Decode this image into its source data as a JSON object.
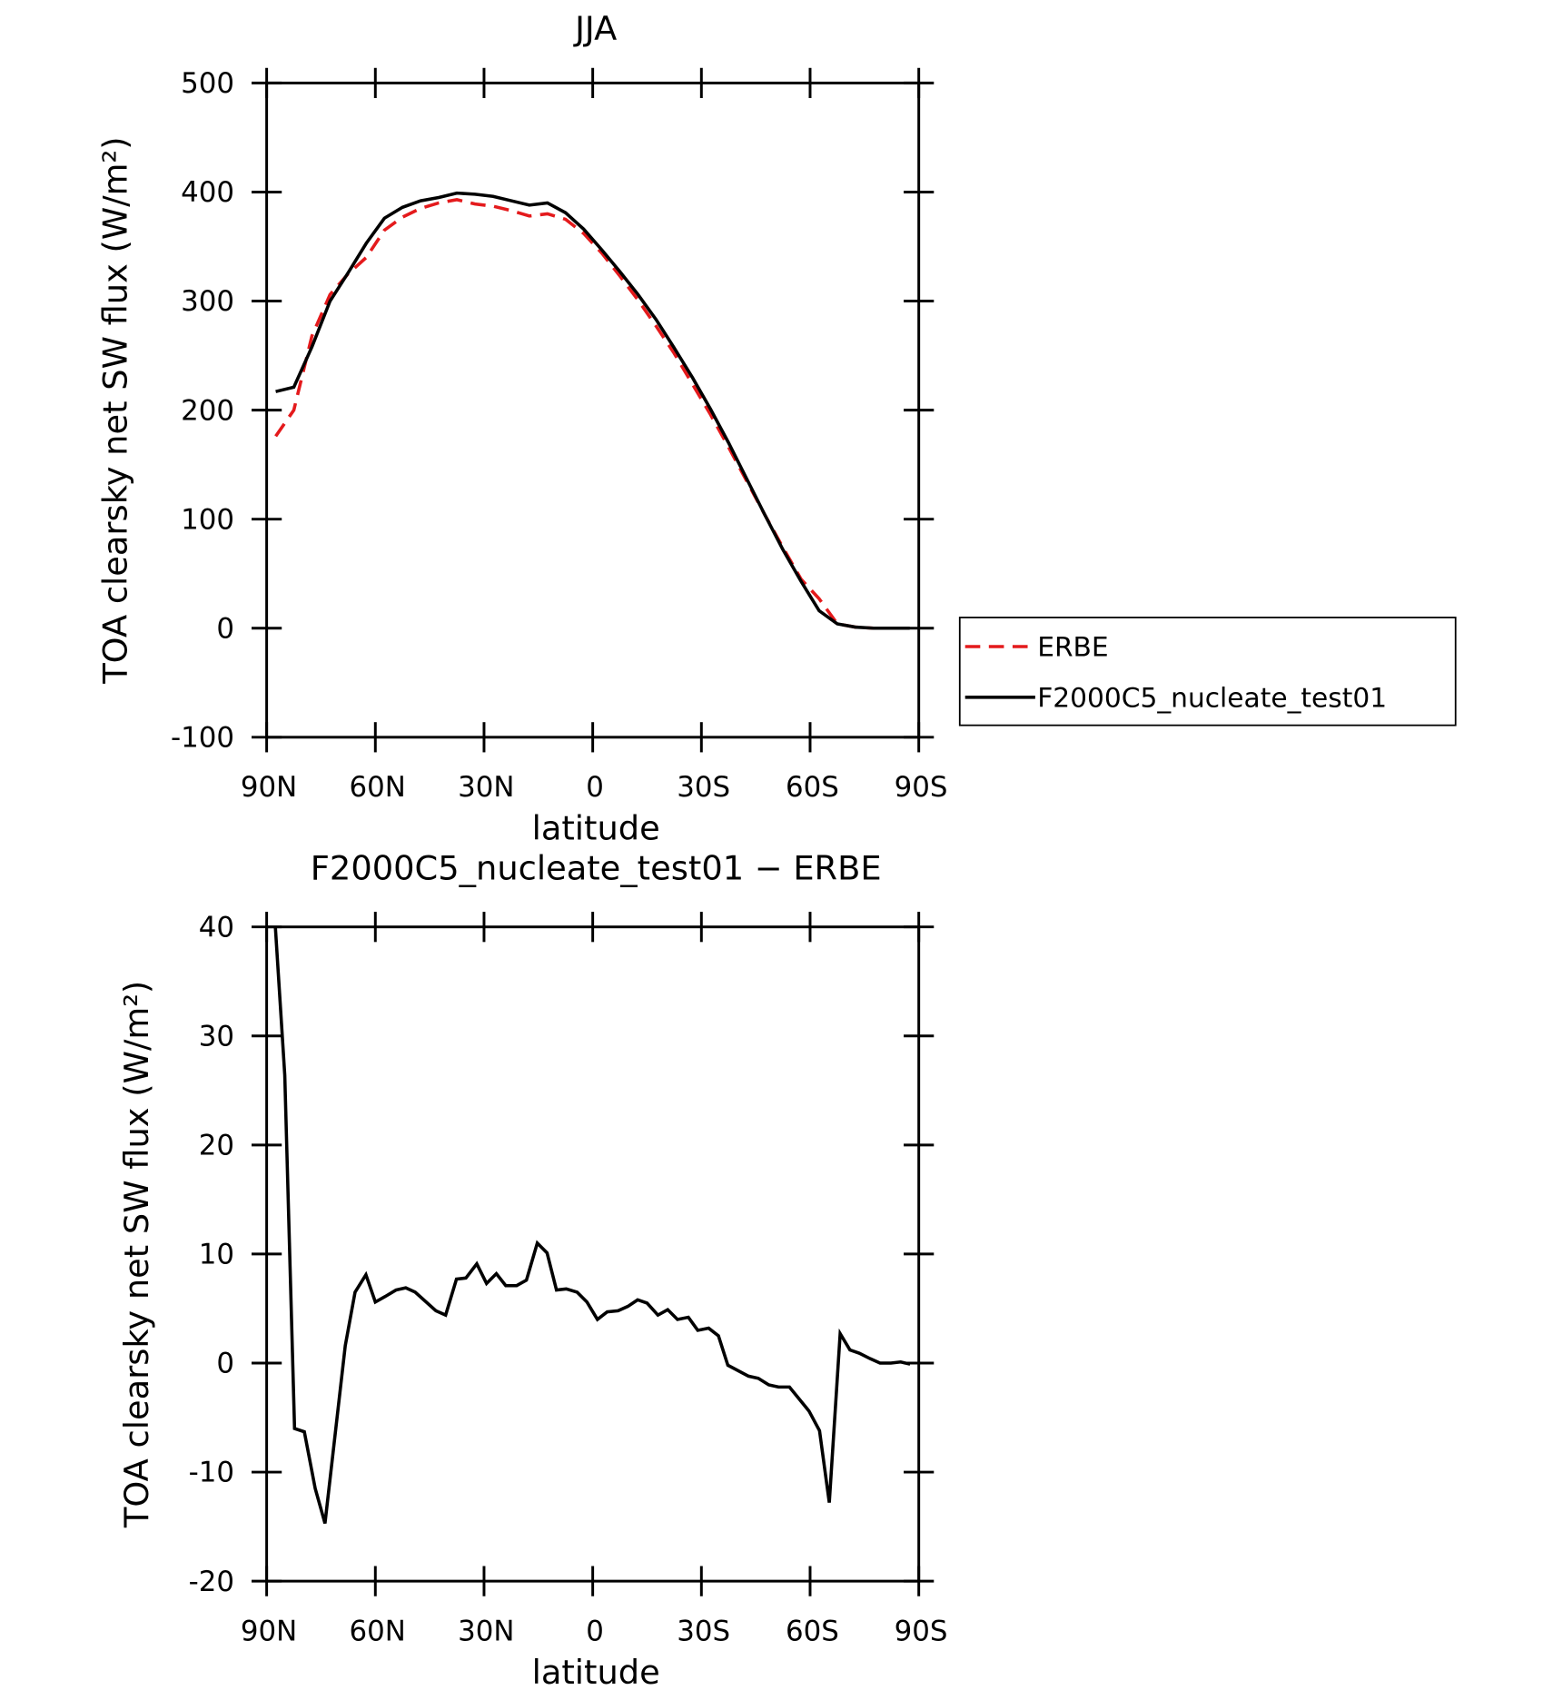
{
  "chart_data": [
    {
      "type": "line",
      "title": "JJA",
      "x_label": "latitude",
      "y_label": "TOA clearsky net SW flux (W/m²)",
      "xlim": [
        90,
        -90
      ],
      "xticks": [
        {
          "value": 90,
          "label": "90N"
        },
        {
          "value": 60,
          "label": "60N"
        },
        {
          "value": 30,
          "label": "30N"
        },
        0,
        {
          "value": -30,
          "label": "30S"
        },
        {
          "value": -60,
          "label": "60S"
        },
        {
          "value": -90,
          "label": "90S"
        }
      ],
      "ylim": [
        -100,
        500
      ],
      "yticks": [
        -100,
        0,
        100,
        200,
        300,
        400,
        500
      ],
      "legend": "right",
      "x": [
        87.5,
        82.5,
        77.5,
        72.5,
        67.5,
        62.5,
        57.5,
        52.5,
        47.5,
        42.5,
        37.5,
        32.5,
        27.5,
        22.5,
        17.5,
        12.5,
        7.5,
        2.5,
        -2.5,
        -7.5,
        -12.5,
        -17.5,
        -22.5,
        -27.5,
        -32.5,
        -37.5,
        -42.5,
        -47.5,
        -52.5,
        -57.5,
        -62.5,
        -67.5,
        -72.5,
        -77.5,
        -82.5,
        -87.5
      ],
      "series": [
        {
          "name": "ERBE",
          "color": "#e41a1c",
          "line_style": "dashed",
          "values": [
            176,
            200,
            268,
            306,
            325,
            340,
            365,
            377,
            385,
            390,
            393,
            389,
            387,
            383,
            378,
            380,
            375,
            362,
            344,
            323,
            301,
            277,
            252,
            224,
            196,
            166,
            135,
            104,
            74,
            45,
            27,
            4,
            1,
            0,
            0,
            0
          ]
        },
        {
          "name": "F2000C5_nucleate_test01",
          "color": "#000000",
          "line_style": "solid",
          "values": [
            217,
            221,
            258,
            300,
            326,
            353,
            376,
            386,
            392,
            395,
            399,
            398,
            396,
            392,
            388,
            390,
            381,
            366,
            347,
            327,
            306,
            283,
            257,
            230,
            201,
            170,
            137,
            104,
            72,
            43,
            16,
            4,
            1,
            0,
            0,
            0
          ]
        }
      ]
    },
    {
      "type": "line",
      "title": "F2000C5_nucleate_test01 − ERBE",
      "x_label": "latitude",
      "y_label": "TOA clearsky net SW flux (W/m²)",
      "xlim": [
        90,
        -90
      ],
      "xticks": [
        {
          "value": 90,
          "label": "90N"
        },
        {
          "value": 60,
          "label": "60N"
        },
        {
          "value": 30,
          "label": "30N"
        },
        0,
        {
          "value": -30,
          "label": "30S"
        },
        {
          "value": -60,
          "label": "60S"
        },
        {
          "value": -90,
          "label": "90S"
        }
      ],
      "ylim": [
        -20,
        40
      ],
      "yticks": [
        -20,
        -10,
        0,
        10,
        20,
        30,
        40
      ],
      "color": "#000000",
      "x": [
        87.6,
        85,
        82.3,
        79.6,
        76.6,
        73.9,
        68.3,
        65.6,
        62.6,
        60,
        57.3,
        54.3,
        51.6,
        49,
        43.3,
        40.6,
        37.6,
        35,
        32,
        29.3,
        26.6,
        24,
        21,
        18.3,
        15.3,
        12.6,
        10,
        7.3,
        4.3,
        1.6,
        -1.3,
        -4,
        -7,
        -9.7,
        -12.4,
        -15,
        -18,
        -20.7,
        -23.4,
        -26.4,
        -29,
        -32,
        -34.7,
        -37.3,
        -43,
        -45.7,
        -48.6,
        -51.3,
        -54.3,
        -59.7,
        -62.6,
        -65.3,
        -68.3,
        -71,
        -73.6,
        -76.6,
        -79.3,
        -82.3,
        -85,
        -87.6
      ],
      "values": [
        40,
        26.4,
        -6,
        -6.3,
        -11.5,
        -14.7,
        1.6,
        6.5,
        8.1,
        5.6,
        6.1,
        6.7,
        6.9,
        6.5,
        4.8,
        4.4,
        7.7,
        7.8,
        9.1,
        7.3,
        8.2,
        7.1,
        7.1,
        7.6,
        11,
        10.1,
        6.7,
        6.8,
        6.5,
        5.6,
        4,
        4.7,
        4.8,
        5.2,
        5.8,
        5.5,
        4.4,
        4.9,
        4,
        4.2,
        3,
        3.2,
        2.5,
        -0.2,
        -1.2,
        -1.4,
        -2,
        -2.2,
        -2.2,
        -4.4,
        -6.2,
        -12.8,
        2.7,
        1.2,
        0.9,
        0.4,
        0,
        0,
        0.1,
        -0.1
      ]
    }
  ]
}
